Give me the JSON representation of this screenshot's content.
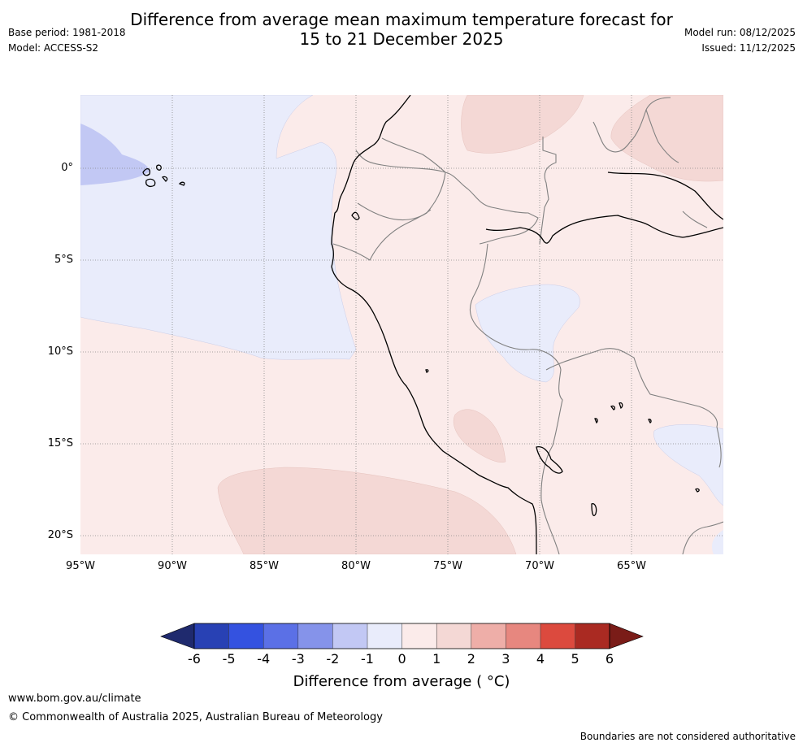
{
  "header": {
    "title_line1": "Difference from average mean maximum temperature forecast for",
    "title_line2": "15 to 21 December 2025",
    "base_period": "Base period: 1981-2018",
    "model": "Model: ACCESS-S2",
    "model_run": "Model run: 08/12/2025",
    "issued": "Issued: 11/12/2025"
  },
  "map": {
    "lat_labels": [
      "0°",
      "5°S",
      "10°S",
      "15°S",
      "20°S"
    ],
    "lon_labels": [
      "95°W",
      "90°W",
      "85°W",
      "80°W",
      "75°W",
      "70°W",
      "65°W"
    ]
  },
  "colorbar": {
    "ticks": [
      "-6",
      "-5",
      "-4",
      "-3",
      "-2",
      "-1",
      "0",
      "1",
      "2",
      "3",
      "4",
      "5",
      "6"
    ],
    "label": "Difference from average ( °C)",
    "colors": [
      "#1f2a6e",
      "#2841b4",
      "#3452e0",
      "#5b70e6",
      "#8593ea",
      "#c2c8f4",
      "#e9ecfb",
      "#fbebea",
      "#f4d8d5",
      "#eeaea8",
      "#e7877f",
      "#dc4a3e",
      "#aa2a22",
      "#7a1c18"
    ]
  },
  "footer": {
    "url": "www.bom.gov.au/climate",
    "copyright": "© Commonwealth of Australia 2025, Australian Bureau of Meteorology",
    "disclaimer": "Boundaries are not considered authoritative"
  }
}
